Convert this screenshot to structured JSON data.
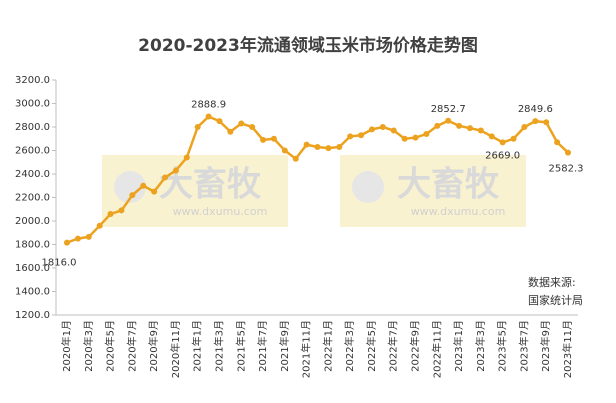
{
  "chart_data": {
    "type": "line",
    "title": "2020-2023年流通领域玉米市场价格走势图",
    "categories": [
      "2020年1月",
      null,
      "2020年3月",
      null,
      "2020年5月",
      null,
      "2020年7月",
      null,
      "2020年9月",
      null,
      "2020年11月",
      null,
      "2021年1月",
      null,
      "2021年3月",
      null,
      "2021年5月",
      null,
      "2021年7月",
      null,
      "2021年9月",
      null,
      "2021年11月",
      null,
      "2022年1月",
      null,
      "2022年3月",
      null,
      "2022年5月",
      null,
      "2022年7月",
      null,
      "2022年9月",
      null,
      "2022年11月",
      null,
      "2023年1月",
      null,
      "2023年3月",
      null,
      "2023年5月",
      null,
      "2023年7月",
      null,
      "2023年9月",
      null,
      "2023年11月"
    ],
    "values": [
      1816,
      1850,
      1865,
      1960,
      2060,
      2090,
      2220,
      2300,
      2250,
      2370,
      2430,
      2540,
      2800,
      2888.9,
      2850,
      2760,
      2830,
      2800,
      2690,
      2700,
      2600,
      2530,
      2650,
      2630,
      2620,
      2630,
      2720,
      2730,
      2780,
      2800,
      2770,
      2700,
      2710,
      2740,
      2810,
      2852.7,
      2810,
      2790,
      2770,
      2720,
      2669,
      2700,
      2800,
      2849.6,
      2840,
      2670,
      2582.3
    ],
    "value_labels": [
      "1816.0",
      null,
      null,
      null,
      null,
      null,
      null,
      null,
      null,
      null,
      null,
      null,
      null,
      "2888.9",
      null,
      null,
      null,
      null,
      null,
      null,
      null,
      null,
      null,
      null,
      null,
      null,
      null,
      null,
      null,
      null,
      null,
      null,
      null,
      null,
      null,
      "2852.7",
      null,
      null,
      null,
      null,
      "2669.0",
      null,
      null,
      "2849.6",
      null,
      null,
      "2582.3"
    ],
    "color": "#eca21e",
    "ylim": [
      1200,
      3200
    ],
    "yticks": [
      {
        "value": 1200,
        "label": "1200.0"
      },
      {
        "value": 1400,
        "label": "1400.0"
      },
      {
        "value": 1600,
        "label": "1600.0"
      },
      {
        "value": 1800,
        "label": "1800.0"
      },
      {
        "value": 2000,
        "label": "2000.0"
      },
      {
        "value": 2200,
        "label": "2200.0"
      },
      {
        "value": 2400,
        "label": "2400.0"
      },
      {
        "value": 2600,
        "label": "2600.0"
      },
      {
        "value": 2800,
        "label": "2800.0"
      },
      {
        "value": 3000,
        "label": "3000.0"
      },
      {
        "value": 3200,
        "label": "3200.0"
      }
    ],
    "grid": false,
    "source": [
      "数据来源:",
      "国家统计局"
    ],
    "watermark": {
      "brand": "大畜牧",
      "url": "www.dxumu.com"
    }
  }
}
